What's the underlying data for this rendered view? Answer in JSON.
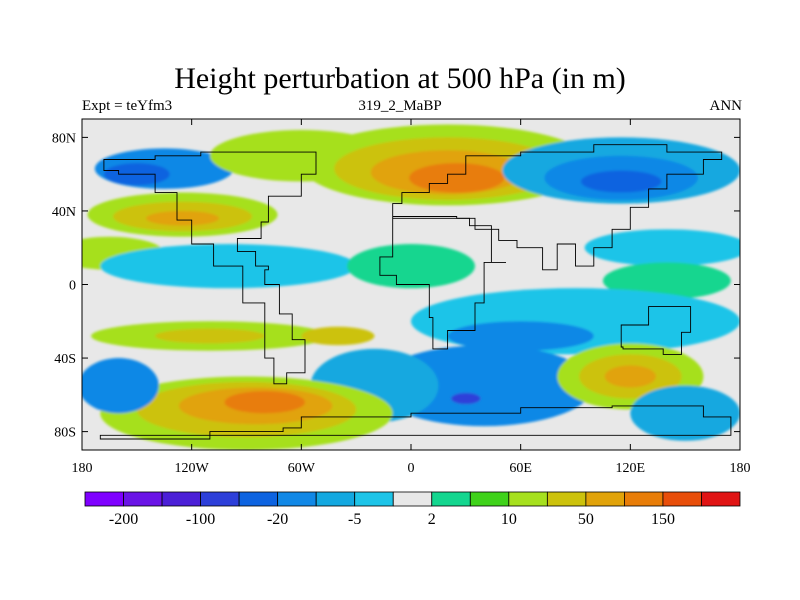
{
  "chart_data": {
    "type": "heatmap",
    "title": "Height perturbation at 500 hPa (in m)",
    "subtitle_left": "Expt = teYfm3",
    "subtitle_center": "319_2_MaBP",
    "subtitle_right": "ANN",
    "xlim": [
      -180,
      180
    ],
    "ylim": [
      -90,
      90
    ],
    "x_ticks": [
      {
        "value": -180,
        "label": "180"
      },
      {
        "value": -120,
        "label": "120W"
      },
      {
        "value": -60,
        "label": "60W"
      },
      {
        "value": 0,
        "label": "0"
      },
      {
        "value": 60,
        "label": "60E"
      },
      {
        "value": 120,
        "label": "120E"
      },
      {
        "value": 180,
        "label": "180"
      }
    ],
    "y_ticks": [
      {
        "value": 80,
        "label": "80N"
      },
      {
        "value": 40,
        "label": "40N"
      },
      {
        "value": 0,
        "label": "0"
      },
      {
        "value": -40,
        "label": "40S"
      },
      {
        "value": -80,
        "label": "80S"
      }
    ],
    "colorbar": {
      "colors": [
        "#7f00ff",
        "#6a14e6",
        "#4b1fd7",
        "#2d3fd9",
        "#0d63e0",
        "#1188e6",
        "#13a8e0",
        "#1ec4e8",
        "#e8e8e8",
        "#14d68f",
        "#3fd21a",
        "#a6e01e",
        "#ccc20c",
        "#e1a30a",
        "#e87d08",
        "#e84e0a",
        "#e01414"
      ],
      "labels": [
        {
          "boundary": 1,
          "text": "-200"
        },
        {
          "boundary": 3,
          "text": "-100"
        },
        {
          "boundary": 5,
          "text": "-20"
        },
        {
          "boundary": 7,
          "text": "-5"
        },
        {
          "boundary": 9,
          "text": "2"
        },
        {
          "boundary": 11,
          "text": "10"
        },
        {
          "boundary": 13,
          "text": "50"
        },
        {
          "boundary": 15,
          "text": "150"
        }
      ]
    },
    "background_level": 8,
    "blobs": [
      {
        "lon": -135,
        "lat": 63,
        "rlon": 38,
        "rlat": 11,
        "level": 5
      },
      {
        "lon": -150,
        "lat": 60,
        "rlon": 18,
        "rlat": 6,
        "level": 4
      },
      {
        "lon": -60,
        "lat": 70,
        "rlon": 50,
        "rlat": 14,
        "level": 11
      },
      {
        "lon": 20,
        "lat": 65,
        "rlon": 80,
        "rlat": 22,
        "level": 11
      },
      {
        "lon": 20,
        "lat": 63,
        "rlon": 62,
        "rlat": 17,
        "level": 12
      },
      {
        "lon": 20,
        "lat": 61,
        "rlon": 42,
        "rlat": 12,
        "level": 13
      },
      {
        "lon": 25,
        "lat": 58,
        "rlon": 26,
        "rlat": 8,
        "level": 14
      },
      {
        "lon": 115,
        "lat": 62,
        "rlon": 65,
        "rlat": 18,
        "level": 6
      },
      {
        "lon": 115,
        "lat": 58,
        "rlon": 42,
        "rlat": 12,
        "level": 5
      },
      {
        "lon": 115,
        "lat": 56,
        "rlon": 22,
        "rlat": 6,
        "level": 4
      },
      {
        "lon": -125,
        "lat": 38,
        "rlon": 52,
        "rlat": 12,
        "level": 11
      },
      {
        "lon": -125,
        "lat": 37,
        "rlon": 38,
        "rlat": 8,
        "level": 12
      },
      {
        "lon": -125,
        "lat": 36,
        "rlon": 20,
        "rlat": 4,
        "level": 13
      },
      {
        "lon": -165,
        "lat": 17,
        "rlon": 30,
        "rlat": 9,
        "level": 11
      },
      {
        "lon": -100,
        "lat": 10,
        "rlon": 70,
        "rlat": 12,
        "level": 7
      },
      {
        "lon": 0,
        "lat": 10,
        "rlon": 35,
        "rlat": 12,
        "level": 9
      },
      {
        "lon": 140,
        "lat": 20,
        "rlon": 45,
        "rlat": 10,
        "level": 7
      },
      {
        "lon": 140,
        "lat": 2,
        "rlon": 35,
        "rlat": 10,
        "level": 9
      },
      {
        "lon": 90,
        "lat": -20,
        "rlon": 90,
        "rlat": 18,
        "level": 7
      },
      {
        "lon": 60,
        "lat": -28,
        "rlon": 40,
        "rlat": 8,
        "level": 5
      },
      {
        "lon": -110,
        "lat": -28,
        "rlon": 65,
        "rlat": 8,
        "level": 11
      },
      {
        "lon": -110,
        "lat": -28,
        "rlon": 30,
        "rlat": 4,
        "level": 12
      },
      {
        "lon": -40,
        "lat": -28,
        "rlon": 20,
        "rlat": 5,
        "level": 12
      },
      {
        "lon": 40,
        "lat": -55,
        "rlon": 60,
        "rlat": 22,
        "level": 5
      },
      {
        "lon": 30,
        "lat": -62,
        "rlon": 8,
        "rlat": 3,
        "level": 3
      },
      {
        "lon": -20,
        "lat": -55,
        "rlon": 35,
        "rlat": 20,
        "level": 6
      },
      {
        "lon": -90,
        "lat": -70,
        "rlon": 80,
        "rlat": 20,
        "level": 11
      },
      {
        "lon": -90,
        "lat": -68,
        "rlon": 60,
        "rlat": 15,
        "level": 12
      },
      {
        "lon": -85,
        "lat": -66,
        "rlon": 42,
        "rlat": 10,
        "level": 13
      },
      {
        "lon": -80,
        "lat": -64,
        "rlon": 22,
        "rlat": 6,
        "level": 14
      },
      {
        "lon": -160,
        "lat": -55,
        "rlon": 22,
        "rlat": 15,
        "level": 5
      },
      {
        "lon": 120,
        "lat": -50,
        "rlon": 40,
        "rlat": 18,
        "level": 11
      },
      {
        "lon": 120,
        "lat": -50,
        "rlon": 28,
        "rlat": 12,
        "level": 12
      },
      {
        "lon": 120,
        "lat": -50,
        "rlon": 14,
        "rlat": 6,
        "level": 13
      },
      {
        "lon": 150,
        "lat": -70,
        "rlon": 30,
        "rlat": 15,
        "level": 6
      }
    ],
    "continents": [
      [
        [
          -115,
          72
        ],
        [
          -75,
          72
        ],
        [
          -52,
          60
        ],
        [
          -60,
          48
        ],
        [
          -78,
          34
        ],
        [
          -82,
          25
        ],
        [
          -95,
          18
        ],
        [
          -85,
          10
        ],
        [
          -78,
          8
        ],
        [
          -80,
          0
        ],
        [
          -72,
          -16
        ],
        [
          -65,
          -30
        ],
        [
          -58,
          -48
        ],
        [
          -68,
          -54
        ],
        [
          -75,
          -40
        ],
        [
          -80,
          -10
        ],
        [
          -92,
          10
        ],
        [
          -108,
          22
        ],
        [
          -120,
          35
        ],
        [
          -128,
          50
        ],
        [
          -140,
          60
        ],
        [
          -160,
          62
        ],
        [
          -168,
          68
        ],
        [
          -140,
          70
        ]
      ],
      [
        [
          -10,
          36
        ],
        [
          10,
          36
        ],
        [
          32,
          32
        ],
        [
          44,
          12
        ],
        [
          52,
          12
        ],
        [
          40,
          -10
        ],
        [
          35,
          -25
        ],
        [
          20,
          -35
        ],
        [
          12,
          -18
        ],
        [
          10,
          0
        ],
        [
          -8,
          5
        ],
        [
          -17,
          15
        ]
      ],
      [
        [
          -10,
          36
        ],
        [
          -10,
          44
        ],
        [
          -5,
          50
        ],
        [
          10,
          55
        ],
        [
          20,
          60
        ],
        [
          30,
          70
        ],
        [
          60,
          72
        ],
        [
          100,
          76
        ],
        [
          140,
          72
        ],
        [
          170,
          68
        ],
        [
          160,
          60
        ],
        [
          140,
          52
        ],
        [
          130,
          42
        ],
        [
          120,
          30
        ],
        [
          110,
          20
        ],
        [
          100,
          10
        ],
        [
          90,
          22
        ],
        [
          80,
          8
        ],
        [
          72,
          20
        ],
        [
          58,
          24
        ],
        [
          48,
          30
        ],
        [
          35,
          36
        ],
        [
          25,
          37
        ]
      ],
      [
        [
          115,
          -22
        ],
        [
          130,
          -12
        ],
        [
          142,
          -12
        ],
        [
          153,
          -26
        ],
        [
          148,
          -38
        ],
        [
          138,
          -35
        ],
        [
          116,
          -34
        ]
      ],
      [
        [
          -60,
          -72
        ],
        [
          0,
          -70
        ],
        [
          60,
          -67
        ],
        [
          110,
          -66
        ],
        [
          160,
          -72
        ],
        [
          175,
          -82
        ],
        [
          -170,
          -84
        ],
        [
          -110,
          -80
        ],
        [
          -70,
          -78
        ]
      ]
    ]
  }
}
